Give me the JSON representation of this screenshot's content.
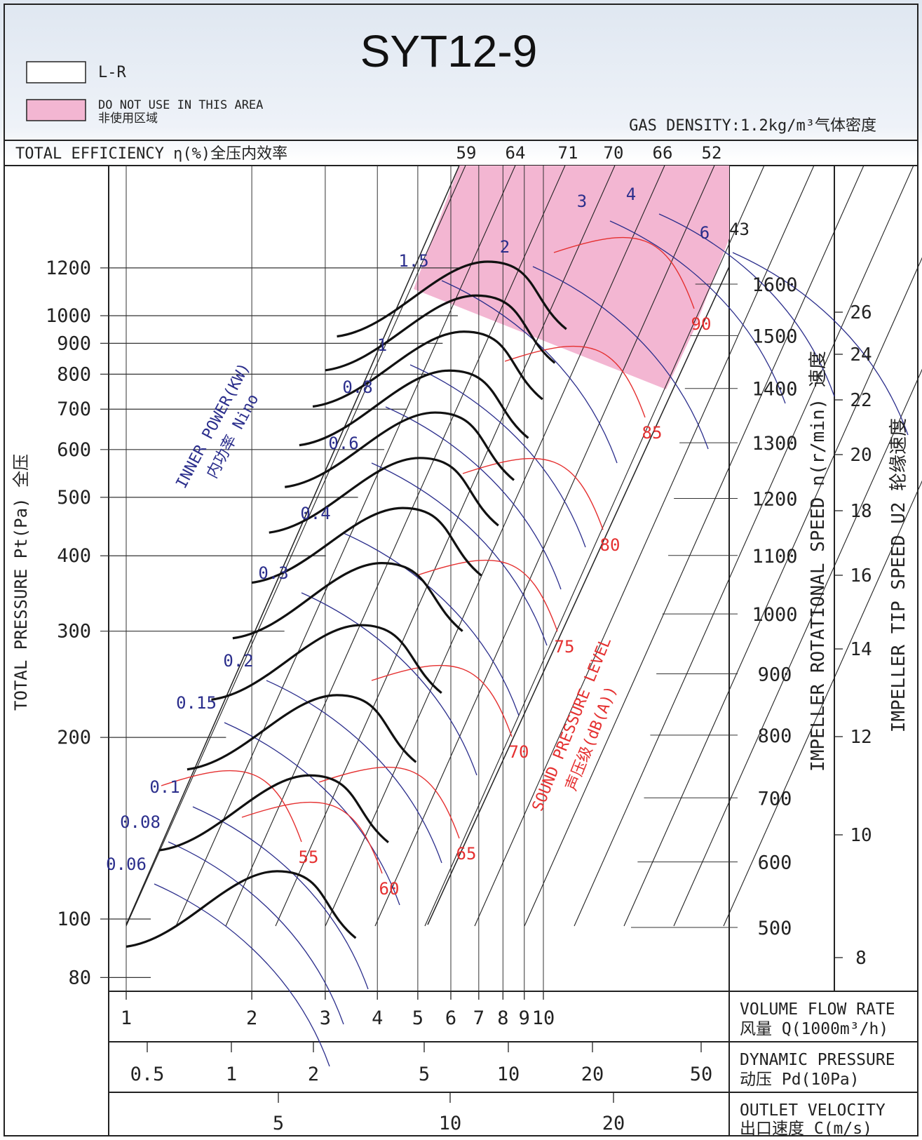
{
  "chart_data": {
    "type": "line",
    "title": "SYT12-9",
    "legend": {
      "items": [
        {
          "label": "L-R",
          "color": "#ffffff"
        },
        {
          "label": "DO NOT USE IN THIS AREA",
          "label_cn": "非使用区域",
          "color": "#f3b6d2"
        }
      ]
    },
    "gas_density": "GAS DENSITY:1.2kg/m³气体密度",
    "efficiency_label": "TOTAL EFFICIENCY η(%)全压内效率",
    "efficiency_values": [
      "59",
      "64",
      "71",
      "70",
      "66",
      "52",
      "43"
    ],
    "ylabel": "TOTAL PRESSURE Pt(Pa) 全压",
    "y_ticks": [
      80,
      100,
      200,
      300,
      400,
      500,
      600,
      700,
      800,
      900,
      1000,
      1200
    ],
    "ylim": [
      75,
      1400
    ],
    "y_scale": "log",
    "xlabel": "VOLUME FLOW RATE 风量 Q(1000m³/h)",
    "x_ticks": [
      1,
      2,
      3,
      4,
      5,
      6,
      7,
      8,
      9,
      10
    ],
    "xlim": [
      0.9,
      13
    ],
    "x_scale": "log",
    "speed_axis": {
      "label": "IMPELLER ROTATIONAL SPEED n(r/min) 速度",
      "unit": "r/min",
      "ticks": [
        500,
        600,
        700,
        800,
        900,
        1000,
        1100,
        1200,
        1300,
        1400,
        1500,
        1600
      ]
    },
    "tip_speed_axis": {
      "label": "IMPELLER TIP SPEED U2 轮缘速度",
      "unit": "m/s",
      "ticks": [
        8,
        10,
        12,
        14,
        16,
        18,
        20,
        22,
        24,
        26
      ]
    },
    "dynamic_pressure_axis": {
      "label_en": "DYNAMIC PRESSURE",
      "label_cn": "动压 Pd(10Pa)",
      "ticks": [
        "0.5",
        "1",
        "2",
        "5",
        "10",
        "20",
        "50"
      ]
    },
    "outlet_velocity_axis": {
      "label_en": "OUTLET VELOCITY",
      "label_cn": "出口速度 C(m/s)",
      "ticks": [
        "5",
        "10",
        "20"
      ]
    },
    "flow_axis_label_en": "VOLUME FLOW RATE",
    "flow_axis_label_cn": "风量 Q(1000m³/h)",
    "power_label_en": "INNER POWER(KW)",
    "power_label_cn": "内功率 Nino",
    "power_values": [
      "0.06",
      "0.08",
      "0.1",
      "0.15",
      "0.2",
      "0.3",
      "0.4",
      "0.6",
      "0.8",
      "1",
      "1.5",
      "2",
      "3",
      "4",
      "6"
    ],
    "sound_label_en": "SOUND PRESSURE LEVEL",
    "sound_label_cn": "声压级(dB(A))",
    "sound_values": [
      "55",
      "60",
      "65",
      "70",
      "75",
      "80",
      "85",
      "90"
    ],
    "series": [
      {
        "speed": 500,
        "x": [
          1.0,
          2.3,
          3.55
        ],
        "y": [
          90,
          120,
          93
        ]
      },
      {
        "speed": 600,
        "x": [
          1.2,
          2.75,
          4.25
        ],
        "y": [
          130,
          173,
          134
        ]
      },
      {
        "speed": 700,
        "x": [
          1.4,
          3.2,
          4.95
        ],
        "y": [
          177,
          235,
          182
        ]
      },
      {
        "speed": 800,
        "x": [
          1.6,
          3.65,
          5.7
        ],
        "y": [
          231,
          307,
          237
        ]
      },
      {
        "speed": 900,
        "x": [
          1.8,
          4.1,
          6.4
        ],
        "y": [
          292,
          389,
          300
        ]
      },
      {
        "speed": 1000,
        "x": [
          2.0,
          4.6,
          7.1
        ],
        "y": [
          361,
          480,
          371
        ]
      },
      {
        "speed": 1100,
        "x": [
          2.2,
          5.05,
          7.8
        ],
        "y": [
          437,
          581,
          449
        ]
      },
      {
        "speed": 1200,
        "x": [
          2.4,
          5.5,
          8.5
        ],
        "y": [
          520,
          691,
          534
        ]
      },
      {
        "speed": 1300,
        "x": [
          2.6,
          5.95,
          9.2
        ],
        "y": [
          610,
          811,
          627
        ]
      },
      {
        "speed": 1400,
        "x": [
          2.8,
          6.45,
          9.95
        ],
        "y": [
          707,
          941,
          727
        ]
      },
      {
        "speed": 1500,
        "x": [
          3.0,
          6.9,
          10.65
        ],
        "y": [
          812,
          1080,
          835
        ]
      },
      {
        "speed": 1600,
        "x": [
          3.2,
          7.35,
          11.35
        ],
        "y": [
          924,
          1229,
          950
        ]
      }
    ]
  }
}
